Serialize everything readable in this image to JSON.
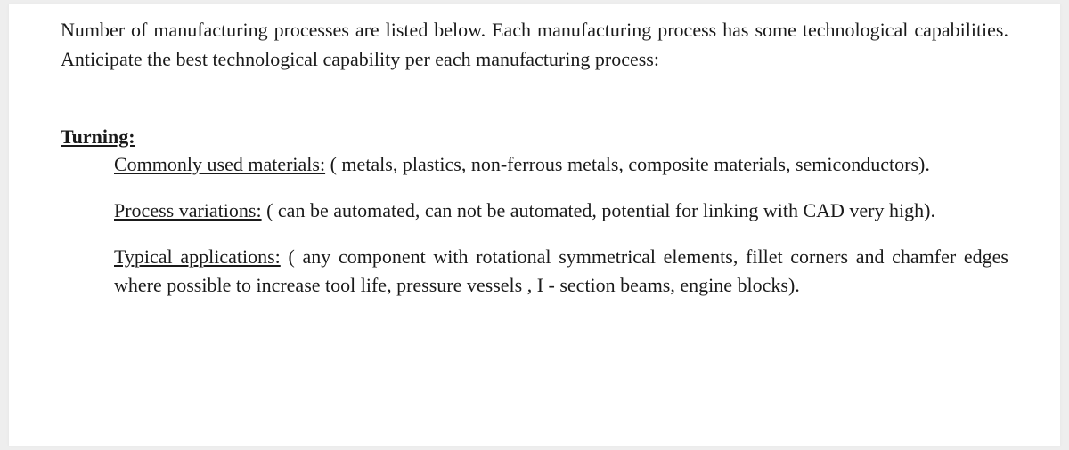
{
  "intro": "Number of manufacturing processes are listed below. Each manufacturing process has some technological capabilities. Anticipate the best technological capability per each manufacturing process:",
  "section": {
    "heading": "Turning:",
    "items": [
      {
        "label": "Commonly used materials:",
        "text": " ( metals, plastics, non-ferrous metals, composite materials, semiconductors)."
      },
      {
        "label": "Process variations:",
        "text": " ( can be automated, can not be automated, potential for linking with CAD very high)."
      },
      {
        "label": "Typical applications:",
        "text": " ( any component with rotational symmetrical elements, fillet corners and chamfer edges where possible to increase tool life, pressure vessels , I  - section beams, engine blocks)."
      }
    ]
  },
  "colors": {
    "page_bg": "#ffffff",
    "outer_bg": "#eeeeee",
    "text": "#1a1a1a"
  },
  "typography": {
    "body_fontsize_pt": 16,
    "font_family": "Times New Roman"
  }
}
